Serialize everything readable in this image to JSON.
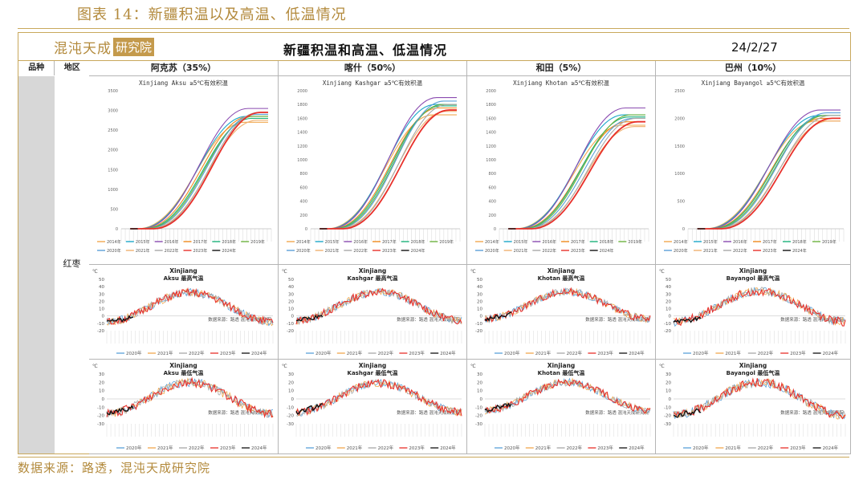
{
  "figure_title": "图表 14：新疆积温以及高温、低温情况",
  "logo": {
    "part1": "混沌天成",
    "part2": "研究院"
  },
  "main_title": "新疆积温和高温、低温情况",
  "date": "24/2/27",
  "row_header": {
    "variety_label": "品种",
    "region_label": "地区"
  },
  "variety": "红枣",
  "regions": [
    {
      "label": "阿克苏（35%）",
      "en": "Aksu"
    },
    {
      "label": "喀什（50%）",
      "en": "Kashgar"
    },
    {
      "label": "和田（5%）",
      "en": "Khotan"
    },
    {
      "label": "巴州（10%）",
      "en": "Bayangol"
    }
  ],
  "watermark": "数据来源：路透   混沌天成研究院",
  "source": "数据来源：路透，混沌天成研究院",
  "colors": {
    "accent": "#c49a4c"
  },
  "chart_data": [
    {
      "type": "line",
      "region": "Aksu",
      "title": "Xinjiang  Aksu  ≥5℃有效积温",
      "ylim": [
        0,
        3500
      ],
      "yticks": [
        0,
        500,
        1000,
        1500,
        2000,
        2500,
        3000,
        3500
      ],
      "series": [
        {
          "name": "2014年",
          "color": "#f1a84f",
          "final": 2700
        },
        {
          "name": "2015年",
          "color": "#1ba8c9",
          "final": 2850
        },
        {
          "name": "2016年",
          "color": "#8a4bb0",
          "final": 3050
        },
        {
          "name": "2017年",
          "color": "#f08a1c",
          "final": 2850
        },
        {
          "name": "2018年",
          "color": "#1bb27a",
          "final": 2800
        },
        {
          "name": "2019年",
          "color": "#6db33f",
          "final": 2850
        },
        {
          "name": "2020年",
          "color": "#5aa0d8",
          "final": 2900
        },
        {
          "name": "2021年",
          "color": "#f0b070",
          "final": 2750
        },
        {
          "name": "2022年",
          "color": "#a8a8a8",
          "final": 2950
        },
        {
          "name": "2023年",
          "color": "#e8302a",
          "final": 2950
        },
        {
          "name": "2024年",
          "color": "#111111",
          "final": null
        }
      ]
    },
    {
      "type": "line",
      "region": "Kashgar",
      "title": "Xinjiang  Kashgar  ≥5℃有效积温",
      "ylim": [
        0,
        2000
      ],
      "yticks": [
        0,
        200,
        400,
        600,
        800,
        1000,
        1200,
        1400,
        1600,
        1800,
        2000
      ],
      "series": [
        {
          "name": "2014年",
          "color": "#f1a84f",
          "final": 1650
        },
        {
          "name": "2015年",
          "color": "#1ba8c9",
          "final": 1800
        },
        {
          "name": "2016年",
          "color": "#8a4bb0",
          "final": 1900
        },
        {
          "name": "2017年",
          "color": "#f08a1c",
          "final": 1750
        },
        {
          "name": "2018年",
          "color": "#1bb27a",
          "final": 1780
        },
        {
          "name": "2019年",
          "color": "#6db33f",
          "final": 1800
        },
        {
          "name": "2020年",
          "color": "#5aa0d8",
          "final": 1850
        },
        {
          "name": "2021年",
          "color": "#f0b070",
          "final": 1700
        },
        {
          "name": "2022年",
          "color": "#a8a8a8",
          "final": 1800
        },
        {
          "name": "2023年",
          "color": "#e8302a",
          "final": 1720
        },
        {
          "name": "2024年",
          "color": "#111111",
          "final": null
        }
      ]
    },
    {
      "type": "line",
      "region": "Khotan",
      "title": "Xinjiang  Khotan  ≥5℃有效积温",
      "ylim": [
        0,
        2000
      ],
      "yticks": [
        0,
        200,
        400,
        600,
        800,
        1000,
        1200,
        1400,
        1600,
        1800,
        2000
      ],
      "series": [
        {
          "name": "2014年",
          "color": "#f1a84f",
          "final": 1500
        },
        {
          "name": "2015年",
          "color": "#1ba8c9",
          "final": 1650
        },
        {
          "name": "2016年",
          "color": "#8a4bb0",
          "final": 1750
        },
        {
          "name": "2017年",
          "color": "#f08a1c",
          "final": 1550
        },
        {
          "name": "2018年",
          "color": "#1bb27a",
          "final": 1620
        },
        {
          "name": "2019年",
          "color": "#6db33f",
          "final": 1650
        },
        {
          "name": "2020年",
          "color": "#5aa0d8",
          "final": 1600
        },
        {
          "name": "2021年",
          "color": "#f0b070",
          "final": 1480
        },
        {
          "name": "2022年",
          "color": "#a8a8a8",
          "final": 1600
        },
        {
          "name": "2023年",
          "color": "#e8302a",
          "final": 1550
        },
        {
          "name": "2024年",
          "color": "#111111",
          "final": null
        }
      ]
    },
    {
      "type": "line",
      "region": "Bayangol",
      "title": "Xinjiang  Bayangol  ≥5℃有效积温",
      "ylim": [
        0,
        2500
      ],
      "yticks": [
        0,
        500,
        1000,
        1500,
        2000,
        2500
      ],
      "series": [
        {
          "name": "2014年",
          "color": "#f1a84f",
          "final": 1950
        },
        {
          "name": "2015年",
          "color": "#1ba8c9",
          "final": 2050
        },
        {
          "name": "2016年",
          "color": "#8a4bb0",
          "final": 2150
        },
        {
          "name": "2017年",
          "color": "#f08a1c",
          "final": 2000
        },
        {
          "name": "2018年",
          "color": "#1bb27a",
          "final": 2050
        },
        {
          "name": "2019年",
          "color": "#6db33f",
          "final": 2050
        },
        {
          "name": "2020年",
          "color": "#5aa0d8",
          "final": 2100
        },
        {
          "name": "2021年",
          "color": "#f0b070",
          "final": 1950
        },
        {
          "name": "2022年",
          "color": "#a8a8a8",
          "final": 2050
        },
        {
          "name": "2023年",
          "color": "#e8302a",
          "final": 2000
        },
        {
          "name": "2024年",
          "color": "#111111",
          "final": null
        }
      ]
    },
    {
      "type": "line",
      "region": "Aksu",
      "title_line1": "Xinjiang",
      "title_line2": "Aksu  最高气温",
      "unit": "℃",
      "ylim": [
        -20,
        50
      ],
      "yticks": [
        -20,
        -10,
        0,
        10,
        20,
        30,
        40,
        50
      ],
      "peak": 32,
      "trough": -8,
      "current": -2
    },
    {
      "type": "line",
      "region": "Kashgar",
      "title_line1": "Xinjiang",
      "title_line2": "Kashgar  最高气温",
      "unit": "℃",
      "ylim": [
        -20,
        50
      ],
      "yticks": [
        -20,
        -10,
        0,
        10,
        20,
        30,
        40,
        50
      ],
      "peak": 33,
      "trough": -6,
      "current": 0
    },
    {
      "type": "line",
      "region": "Khotan",
      "title_line1": "Xinjiang",
      "title_line2": "Khotan  最高气温",
      "unit": "℃",
      "ylim": [
        -20,
        50
      ],
      "yticks": [
        -20,
        -10,
        0,
        10,
        20,
        30,
        40,
        50
      ],
      "peak": 33,
      "trough": -4,
      "current": 3
    },
    {
      "type": "line",
      "region": "Bayangol",
      "title_line1": "Xinjiang",
      "title_line2": "Bayangol  最高气温",
      "unit": "℃",
      "ylim": [
        -20,
        50
      ],
      "yticks": [
        -20,
        -10,
        0,
        10,
        20,
        30,
        40,
        50
      ],
      "peak": 34,
      "trough": -8,
      "current": -4
    },
    {
      "type": "line",
      "region": "Aksu",
      "title_line1": "Xinjiang",
      "title_line2": "Aksu  最低气温",
      "unit": "℃",
      "ylim": [
        -30,
        30
      ],
      "yticks": [
        -30,
        -20,
        -10,
        0,
        10,
        20,
        30
      ],
      "peak": 20,
      "trough": -18,
      "current": -10
    },
    {
      "type": "line",
      "region": "Kashgar",
      "title_line1": "Xinjiang",
      "title_line2": "Kashgar  最低气温",
      "unit": "℃",
      "ylim": [
        -30,
        30
      ],
      "yticks": [
        -30,
        -20,
        -10,
        0,
        10,
        20,
        30
      ],
      "peak": 19,
      "trough": -16,
      "current": -8
    },
    {
      "type": "line",
      "region": "Khotan",
      "title_line1": "Xinjiang",
      "title_line2": "Khotan  最低气温",
      "unit": "℃",
      "ylim": [
        -30,
        30
      ],
      "yticks": [
        -30,
        -20,
        -10,
        0,
        10,
        20,
        30
      ],
      "peak": 20,
      "trough": -14,
      "current": -6
    },
    {
      "type": "line",
      "region": "Bayangol",
      "title_line1": "Xinjiang",
      "title_line2": "Bayangol  最低气温",
      "unit": "℃",
      "ylim": [
        -30,
        30
      ],
      "yticks": [
        -30,
        -20,
        -10,
        0,
        10,
        20,
        30
      ],
      "peak": 20,
      "trough": -20,
      "current": -14
    }
  ],
  "temp_series": [
    {
      "name": "2020年",
      "color": "#5aa0d8"
    },
    {
      "name": "2021年",
      "color": "#f1a84f"
    },
    {
      "name": "2022年",
      "color": "#a8a8a8"
    },
    {
      "name": "2023年",
      "color": "#e8302a"
    },
    {
      "name": "2024年",
      "color": "#111111"
    }
  ]
}
